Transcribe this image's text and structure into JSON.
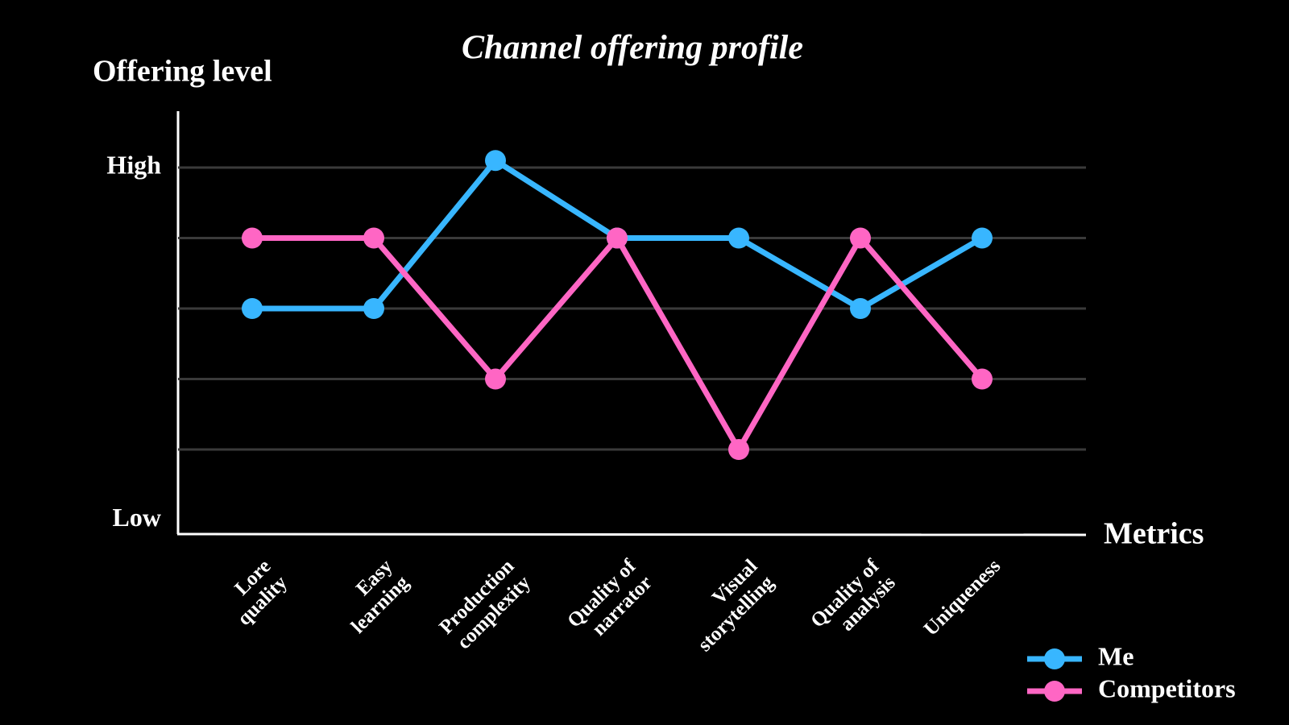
{
  "chart_data": {
    "type": "line",
    "title": "Channel offering profile",
    "y_label": "Offering level",
    "x_label": "Metrics",
    "categories": [
      "Lore\nquality",
      "Easy\nlearning",
      "Production\ncomplexity",
      "Quality of\nnarrator",
      "Visual\nstorytelling",
      "Quality of\nanalysis",
      "Uniqueness"
    ],
    "series": [
      {
        "name": "Me",
        "color": "#38b6ff",
        "values": [
          3,
          3,
          5.1,
          4,
          4,
          3,
          4
        ]
      },
      {
        "name": "Competitors",
        "color": "#ff66c4",
        "values": [
          4,
          4,
          2,
          4,
          1,
          4,
          2
        ]
      }
    ],
    "ylim": [
      -0.2,
      5.8
    ],
    "yticks": [
      {
        "value": 0,
        "label": "Low"
      },
      {
        "value": 5,
        "label": "High"
      }
    ],
    "gridlines": [
      1,
      2,
      3,
      4,
      5
    ],
    "legend": "bottom-right"
  }
}
